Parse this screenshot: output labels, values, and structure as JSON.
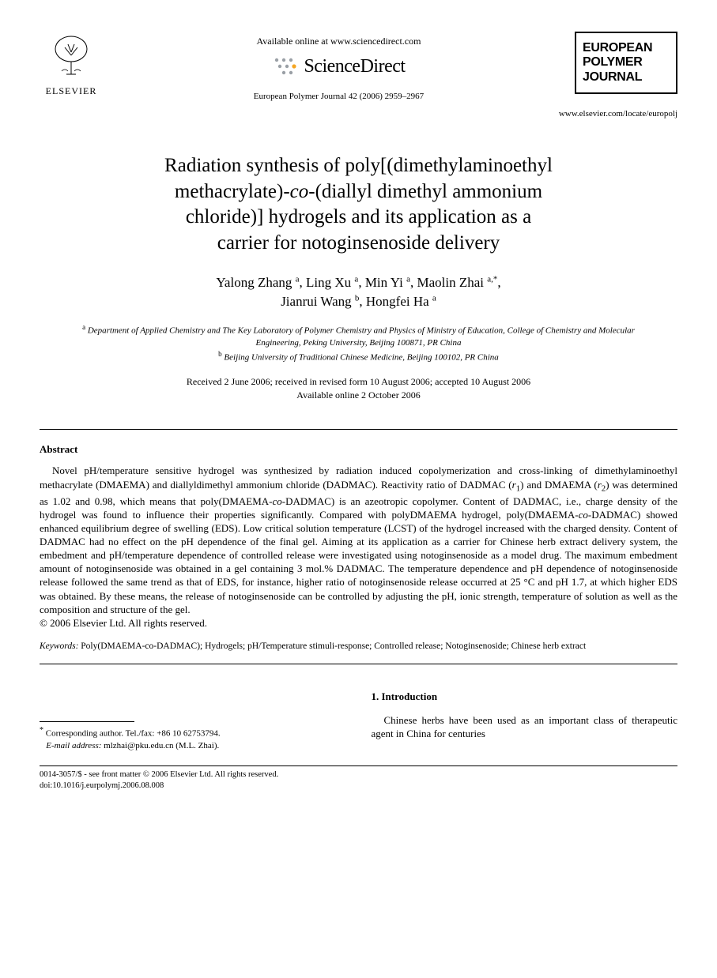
{
  "header": {
    "elsevier_label": "ELSEVIER",
    "available_online": "Available online at www.sciencedirect.com",
    "sciencedirect": "ScienceDirect",
    "citation": "European Polymer Journal 42 (2006) 2959–2967",
    "journal_name_l1": "EUROPEAN",
    "journal_name_l2": "POLYMER",
    "journal_name_l3": "JOURNAL",
    "journal_url": "www.elsevier.com/locate/europolj"
  },
  "title": {
    "l1": "Radiation synthesis of poly[(dimethylaminoethyl",
    "l2a": "methacrylate)-",
    "l2_co": "co",
    "l2b": "-(diallyl dimethyl ammonium",
    "l3": "chloride)] hydrogels and its application as a",
    "l4": "carrier for notoginsenoside delivery"
  },
  "authors": {
    "a1": "Yalong Zhang",
    "a1_sup": "a",
    "a2": "Ling Xu",
    "a2_sup": "a",
    "a3": "Min Yi",
    "a3_sup": "a",
    "a4": "Maolin Zhai",
    "a4_sup": "a,*",
    "a5": "Jianrui Wang",
    "a5_sup": "b",
    "a6": "Hongfei Ha",
    "a6_sup": "a"
  },
  "affiliations": {
    "a_sup": "a",
    "a_text": "Department of Applied Chemistry and The Key Laboratory of Polymer Chemistry and Physics of Ministry of Education, College of Chemistry and Molecular Engineering, Peking University, Beijing 100871, PR China",
    "b_sup": "b",
    "b_text": "Beijing University of Traditional Chinese Medicine, Beijing 100102, PR China"
  },
  "dates": {
    "l1": "Received 2 June 2006; received in revised form 10 August 2006; accepted 10 August 2006",
    "l2": "Available online 2 October 2006"
  },
  "abstract": {
    "heading": "Abstract",
    "body_html": "Novel pH/temperature sensitive hydrogel was synthesized by radiation induced copolymerization and cross-linking of dimethylaminoethyl methacrylate (DMAEMA) and diallyldimethyl ammonium chloride (DADMAC). Reactivity ratio of DADMAC (<em>r</em><sub>1</sub>) and DMAEMA (<em>r</em><sub>2</sub>) was determined as 1.02 and 0.98, which means that poly(DMAEMA-<em>co</em>-DADMAC) is an azeotropic copolymer. Content of DADMAC, i.e., charge density of the hydrogel was found to influence their properties significantly. Compared with polyDMAEMA hydrogel, poly(DMAEMA-<em>co</em>-DADMAC) showed enhanced equilibrium degree of swelling (EDS). Low critical solution temperature (LCST) of the hydrogel increased with the charged density. Content of DADMAC had no effect on the pH dependence of the final gel. Aiming at its application as a carrier for Chinese herb extract delivery system, the embedment and pH/temperature dependence of controlled release were investigated using notoginsenoside as a model drug. The maximum embedment amount of notoginsenoside was obtained in a gel containing 3 mol.% DADMAC. The temperature dependence and pH dependence of notoginsenoside release followed the same trend as that of EDS, for instance, higher ratio of notoginsenoside release occurred at 25 °C and pH 1.7, at which higher EDS was obtained. By these means, the release of notoginsenoside can be controlled by adjusting the pH, ionic strength, temperature of solution as well as the composition and structure of the gel.",
    "copyright": "© 2006 Elsevier Ltd. All rights reserved."
  },
  "keywords": {
    "label": "Keywords:",
    "text": "Poly(DMAEMA-co-DADMAC); Hydrogels; pH/Temperature stimuli-response; Controlled release; Notoginsenoside; Chinese herb extract"
  },
  "footnote": {
    "corr_label": "Corresponding author. Tel./fax: +86 10 62753794.",
    "email_label": "E-mail address:",
    "email": "mlzhai@pku.edu.cn",
    "email_tail": "(M.L. Zhai)."
  },
  "section1": {
    "heading": "1. Introduction",
    "text": "Chinese herbs have been used as an important class of therapeutic agent in China for centuries"
  },
  "bottom": {
    "l1": "0014-3057/$ - see front matter © 2006 Elsevier Ltd. All rights reserved.",
    "l2": "doi:10.1016/j.eurpolymj.2006.08.008"
  },
  "colors": {
    "text": "#000000",
    "bg": "#ffffff",
    "dot": "#9aa0a6",
    "dot_orange": "#f5a623"
  }
}
